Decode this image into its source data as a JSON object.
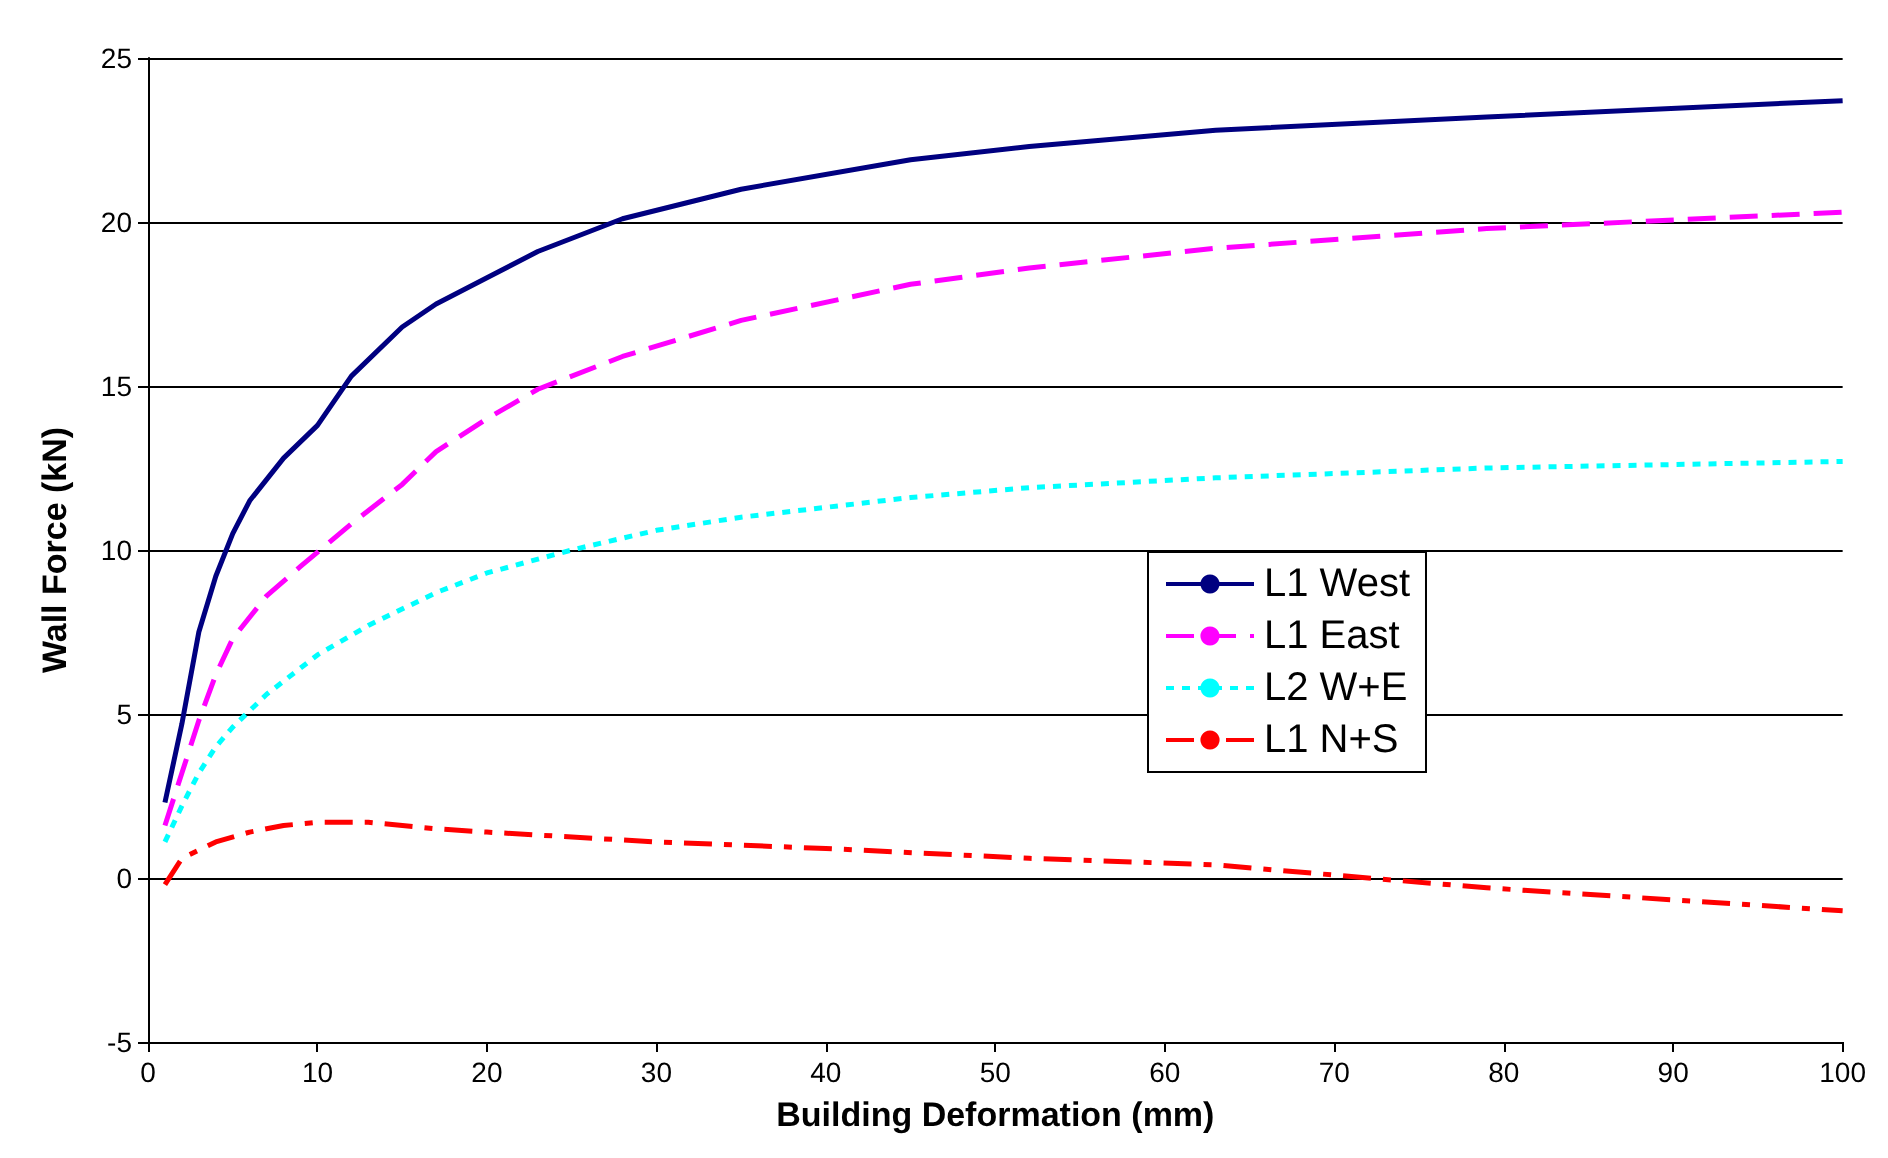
{
  "chart_data": {
    "type": "line",
    "xlabel": "Building Deformation (mm)",
    "ylabel": "Wall Force (kN)",
    "xlim": [
      0,
      100
    ],
    "xticks": [
      0,
      10,
      20,
      30,
      40,
      50,
      60,
      70,
      80,
      90,
      100
    ],
    "ylim": [
      -5,
      25
    ],
    "yticks": [
      -5,
      0,
      5,
      10,
      15,
      20,
      25
    ],
    "grid": "y",
    "legend": "right",
    "marker": "none",
    "series": [
      {
        "name": "L1 West",
        "color": "#000080",
        "line_style": "solid",
        "x": [
          1,
          2,
          3,
          4,
          5,
          6,
          8,
          10,
          12,
          15,
          17,
          20,
          23,
          28,
          35,
          45,
          52,
          63,
          79,
          100
        ],
        "values": [
          2.3,
          4.7,
          7.5,
          9.2,
          10.5,
          11.5,
          12.8,
          13.8,
          15.3,
          16.8,
          17.5,
          18.3,
          19.1,
          20.1,
          21.0,
          21.9,
          22.3,
          22.8,
          23.2,
          23.7
        ]
      },
      {
        "name": "L1 East",
        "color": "#ff00ff",
        "line_style": "dashed",
        "x": [
          1,
          2,
          3,
          4,
          5,
          7,
          9,
          12,
          15,
          17,
          20,
          23,
          28,
          35,
          45,
          52,
          63,
          79,
          100
        ],
        "values": [
          1.6,
          3.2,
          4.8,
          6.2,
          7.3,
          8.6,
          9.5,
          10.8,
          12.0,
          13.0,
          14.0,
          14.9,
          15.9,
          17.0,
          18.1,
          18.6,
          19.2,
          19.8,
          20.3
        ]
      },
      {
        "name": "L2 W+E",
        "color": "#00ffff",
        "line_style": "dotted",
        "x": [
          1,
          2,
          3,
          4,
          5,
          7,
          10,
          13,
          17,
          20,
          25,
          30,
          35,
          45,
          52,
          63,
          79,
          100
        ],
        "values": [
          1.1,
          2.2,
          3.2,
          4.0,
          4.6,
          5.6,
          6.8,
          7.7,
          8.7,
          9.3,
          10.0,
          10.6,
          11.0,
          11.6,
          11.9,
          12.2,
          12.5,
          12.7
        ]
      },
      {
        "name": "L1 N+S",
        "color": "#ff0000",
        "line_style": "dashdot",
        "x": [
          1,
          2,
          4,
          6,
          8,
          10,
          13,
          17,
          20,
          30,
          40,
          52,
          63,
          72,
          79,
          100
        ],
        "values": [
          -0.2,
          0.6,
          1.1,
          1.4,
          1.6,
          1.7,
          1.7,
          1.5,
          1.4,
          1.1,
          0.9,
          0.6,
          0.4,
          0.0,
          -0.3,
          -1.0
        ]
      }
    ]
  }
}
